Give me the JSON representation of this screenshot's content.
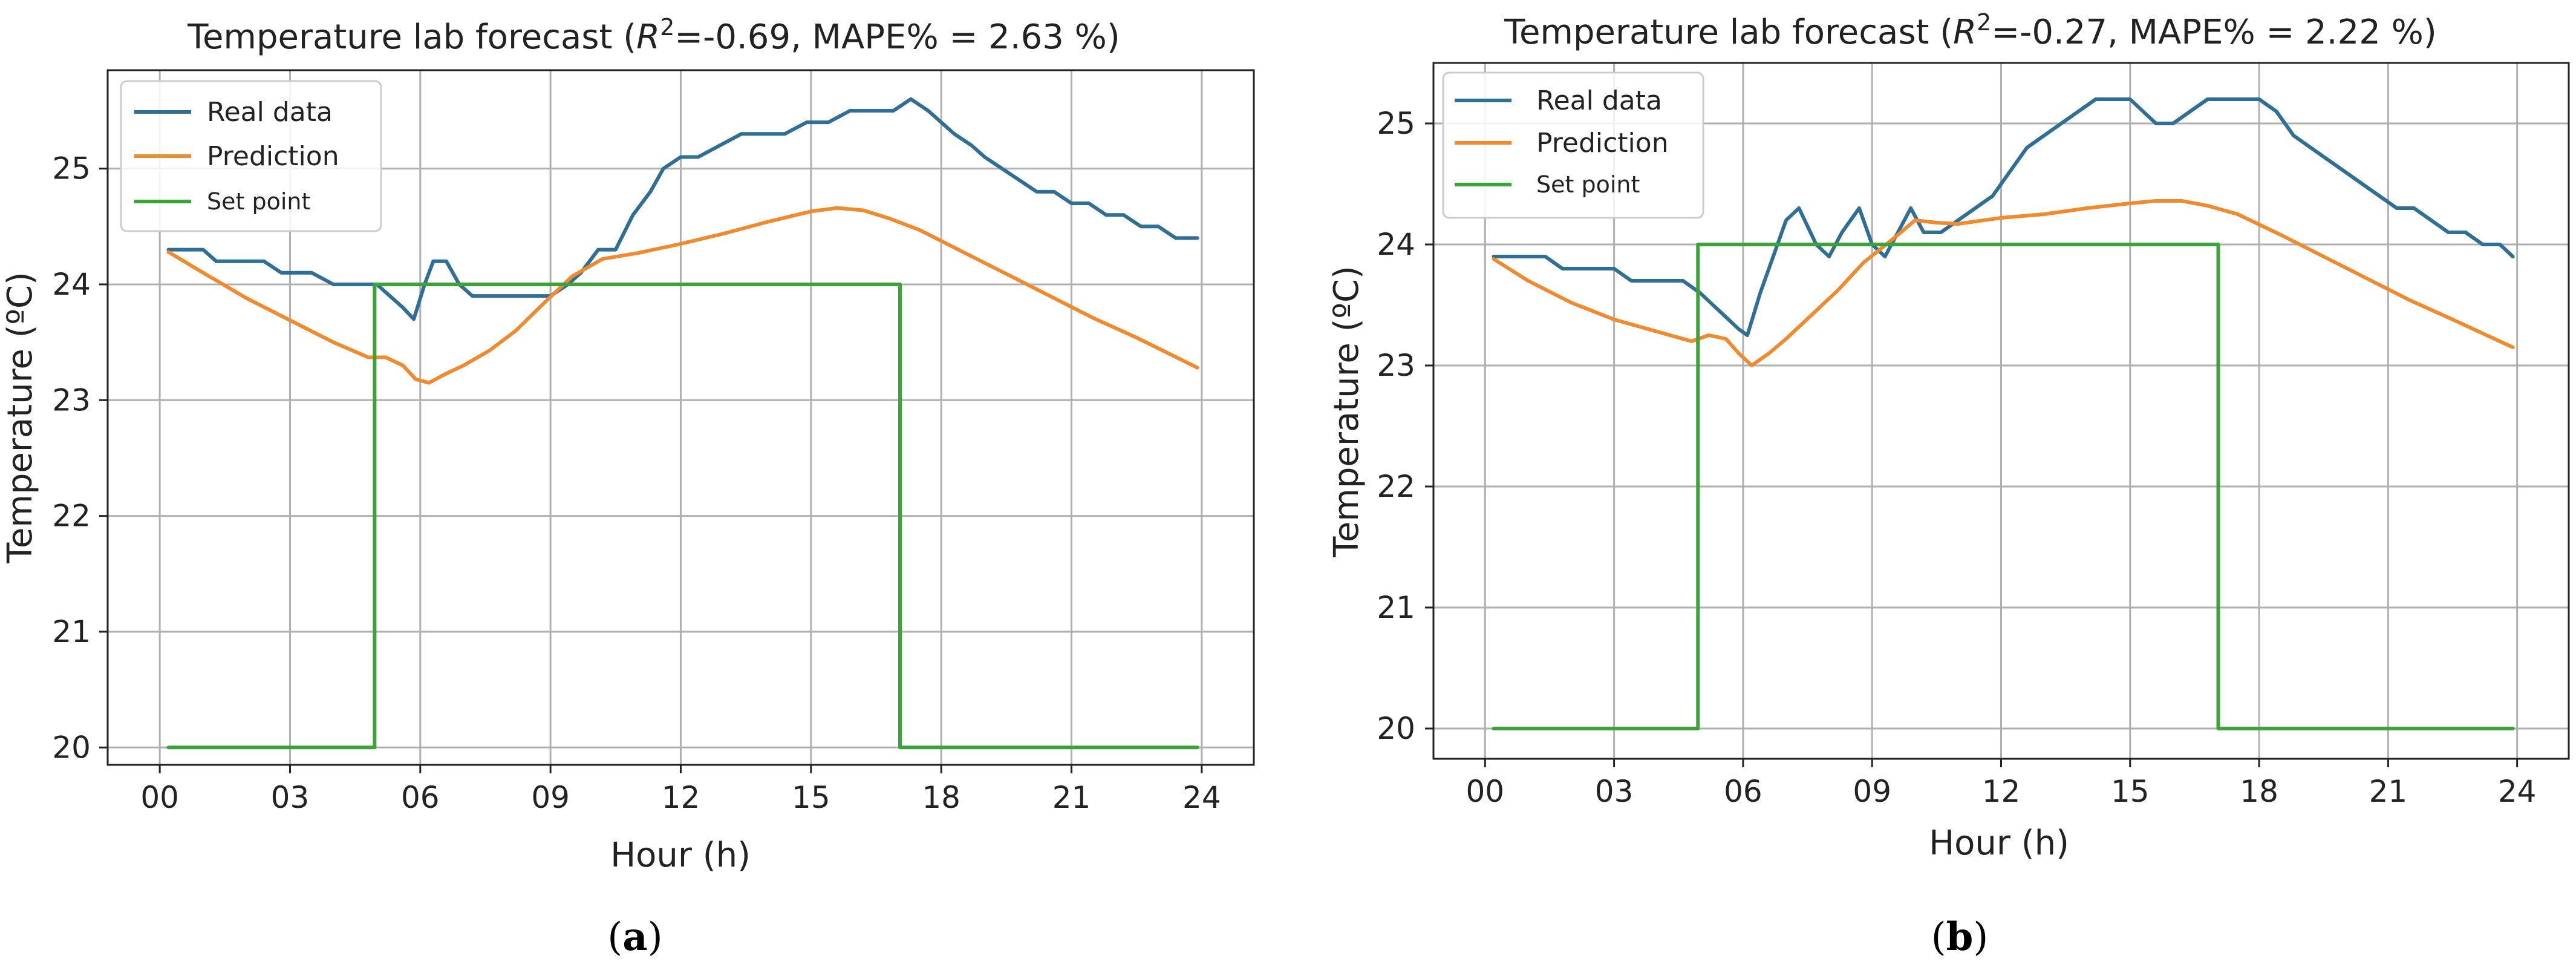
{
  "chart_data": [
    {
      "type": "line",
      "panel_label": "a",
      "title": "Temperature lab forecast",
      "title_stats": "=-0.69, MAPE% = 2.63 %)",
      "title_r": "R",
      "title_sup": "2",
      "xlabel": "Hour (h)",
      "ylabel": "Temperature (ºC)",
      "xlim": [
        -1.2,
        25.2
      ],
      "ylim": [
        19.85,
        25.85
      ],
      "x_ticks": [
        0,
        3,
        6,
        9,
        12,
        15,
        18,
        21,
        24
      ],
      "x_tick_labels": [
        "00",
        "03",
        "06",
        "09",
        "12",
        "15",
        "18",
        "21",
        "24"
      ],
      "y_ticks": [
        20,
        21,
        22,
        23,
        24,
        25
      ],
      "y_tick_labels": [
        "20",
        "21",
        "22",
        "23",
        "24",
        "25"
      ],
      "grid": true,
      "legend_position": "top-left",
      "series": [
        {
          "name": "Real data",
          "color": "#2f6f95",
          "x": [
            0.2,
            0.6,
            1.0,
            1.3,
            1.6,
            2.0,
            2.4,
            2.8,
            3.1,
            3.5,
            4.0,
            4.4,
            4.8,
            5.0,
            5.3,
            5.6,
            5.85,
            6.1,
            6.3,
            6.6,
            6.9,
            7.2,
            7.6,
            8.0,
            8.5,
            9.0,
            9.4,
            9.7,
            10.1,
            10.5,
            10.9,
            11.3,
            11.6,
            12.0,
            12.4,
            12.9,
            13.4,
            13.9,
            14.4,
            14.9,
            15.4,
            15.9,
            16.4,
            16.9,
            17.3,
            17.7,
            18.0,
            18.3,
            18.7,
            19.0,
            19.4,
            19.8,
            20.2,
            20.6,
            21.0,
            21.4,
            21.8,
            22.2,
            22.6,
            23.0,
            23.4,
            23.9
          ],
          "y": [
            24.3,
            24.3,
            24.3,
            24.2,
            24.2,
            24.2,
            24.2,
            24.1,
            24.1,
            24.1,
            24.0,
            24.0,
            24.0,
            24.0,
            23.9,
            23.8,
            23.7,
            24.0,
            24.2,
            24.2,
            24.0,
            23.9,
            23.9,
            23.9,
            23.9,
            23.9,
            24.0,
            24.1,
            24.3,
            24.3,
            24.6,
            24.8,
            25.0,
            25.1,
            25.1,
            25.2,
            25.3,
            25.3,
            25.3,
            25.4,
            25.4,
            25.5,
            25.5,
            25.5,
            25.6,
            25.5,
            25.4,
            25.3,
            25.2,
            25.1,
            25.0,
            24.9,
            24.8,
            24.8,
            24.7,
            24.7,
            24.6,
            24.6,
            24.5,
            24.5,
            24.4,
            24.4
          ]
        },
        {
          "name": "Prediction",
          "color": "#ef8a2e",
          "x": [
            0.2,
            1.0,
            2.0,
            3.0,
            4.0,
            4.8,
            5.2,
            5.6,
            5.9,
            6.2,
            6.6,
            7.0,
            7.6,
            8.2,
            8.8,
            9.5,
            10.2,
            11.0,
            12.0,
            13.0,
            14.0,
            15.0,
            15.6,
            16.2,
            16.8,
            17.5,
            18.5,
            19.5,
            20.5,
            21.5,
            22.5,
            23.9
          ],
          "y": [
            24.28,
            24.1,
            23.88,
            23.69,
            23.5,
            23.37,
            23.37,
            23.3,
            23.18,
            23.15,
            23.23,
            23.3,
            23.43,
            23.6,
            23.82,
            24.07,
            24.22,
            24.27,
            24.35,
            24.44,
            24.54,
            24.63,
            24.66,
            24.64,
            24.57,
            24.47,
            24.28,
            24.09,
            23.9,
            23.71,
            23.54,
            23.28
          ]
        },
        {
          "name": "Set point",
          "color": "#3ea23a",
          "x": [
            0.2,
            4.95,
            4.95,
            17.05,
            17.05,
            23.9
          ],
          "y": [
            20,
            20,
            24,
            24,
            20,
            20
          ]
        }
      ]
    },
    {
      "type": "line",
      "panel_label": "b",
      "title": "Temperature lab forecast",
      "title_stats": "=-0.27, MAPE% = 2.22 %)",
      "title_r": "R",
      "title_sup": "2",
      "xlabel": "Hour (h)",
      "ylabel": "Temperature (ºC)",
      "xlim": [
        -1.2,
        25.2
      ],
      "ylim": [
        19.75,
        25.5
      ],
      "x_ticks": [
        0,
        3,
        6,
        9,
        12,
        15,
        18,
        21,
        24
      ],
      "x_tick_labels": [
        "00",
        "03",
        "06",
        "09",
        "12",
        "15",
        "18",
        "21",
        "24"
      ],
      "y_ticks": [
        20,
        21,
        22,
        23,
        24,
        25
      ],
      "y_tick_labels": [
        "20",
        "21",
        "22",
        "23",
        "24",
        "25"
      ],
      "grid": true,
      "legend_position": "top-left",
      "series": [
        {
          "name": "Real data",
          "color": "#2f6f95",
          "x": [
            0.2,
            0.6,
            1.0,
            1.4,
            1.8,
            2.2,
            2.6,
            3.0,
            3.4,
            3.8,
            4.2,
            4.6,
            5.0,
            5.3,
            5.6,
            5.9,
            6.1,
            6.4,
            6.7,
            7.0,
            7.3,
            7.7,
            8.0,
            8.3,
            8.7,
            9.0,
            9.3,
            9.6,
            9.9,
            10.2,
            10.6,
            11.0,
            11.4,
            11.8,
            12.2,
            12.6,
            13.0,
            13.4,
            13.8,
            14.2,
            14.6,
            15.0,
            15.3,
            15.6,
            16.0,
            16.4,
            16.8,
            17.2,
            17.6,
            18.0,
            18.4,
            18.8,
            19.2,
            19.6,
            20.0,
            20.4,
            20.8,
            21.2,
            21.6,
            22.0,
            22.4,
            22.8,
            23.2,
            23.6,
            23.9
          ],
          "y": [
            23.9,
            23.9,
            23.9,
            23.9,
            23.8,
            23.8,
            23.8,
            23.8,
            23.7,
            23.7,
            23.7,
            23.7,
            23.6,
            23.5,
            23.4,
            23.3,
            23.25,
            23.6,
            23.9,
            24.2,
            24.3,
            24.0,
            23.9,
            24.1,
            24.3,
            24.0,
            23.9,
            24.1,
            24.3,
            24.1,
            24.1,
            24.2,
            24.3,
            24.4,
            24.6,
            24.8,
            24.9,
            25.0,
            25.1,
            25.2,
            25.2,
            25.2,
            25.1,
            25.0,
            25.0,
            25.1,
            25.2,
            25.2,
            25.2,
            25.2,
            25.1,
            24.9,
            24.8,
            24.7,
            24.6,
            24.5,
            24.4,
            24.3,
            24.3,
            24.2,
            24.1,
            24.1,
            24.0,
            24.0,
            23.9
          ]
        },
        {
          "name": "Prediction",
          "color": "#ef8a2e",
          "x": [
            0.2,
            1.0,
            2.0,
            3.0,
            4.0,
            4.8,
            5.2,
            5.6,
            5.9,
            6.2,
            6.6,
            7.0,
            7.6,
            8.2,
            8.8,
            9.5,
            10.0,
            10.5,
            11.0,
            12.0,
            13.0,
            14.0,
            15.0,
            15.6,
            16.2,
            16.8,
            17.5,
            18.5,
            19.5,
            20.5,
            21.5,
            22.5,
            23.9
          ],
          "y": [
            23.88,
            23.7,
            23.52,
            23.38,
            23.28,
            23.2,
            23.25,
            23.22,
            23.1,
            23.0,
            23.1,
            23.22,
            23.42,
            23.62,
            23.85,
            24.05,
            24.2,
            24.18,
            24.17,
            24.22,
            24.25,
            24.3,
            24.34,
            24.36,
            24.36,
            24.32,
            24.25,
            24.08,
            23.9,
            23.72,
            23.54,
            23.38,
            23.15
          ]
        },
        {
          "name": "Set point",
          "color": "#3ea23a",
          "x": [
            0.2,
            4.95,
            4.95,
            17.05,
            17.05,
            23.9
          ],
          "y": [
            20,
            20,
            24,
            24,
            20,
            20
          ]
        }
      ]
    }
  ]
}
